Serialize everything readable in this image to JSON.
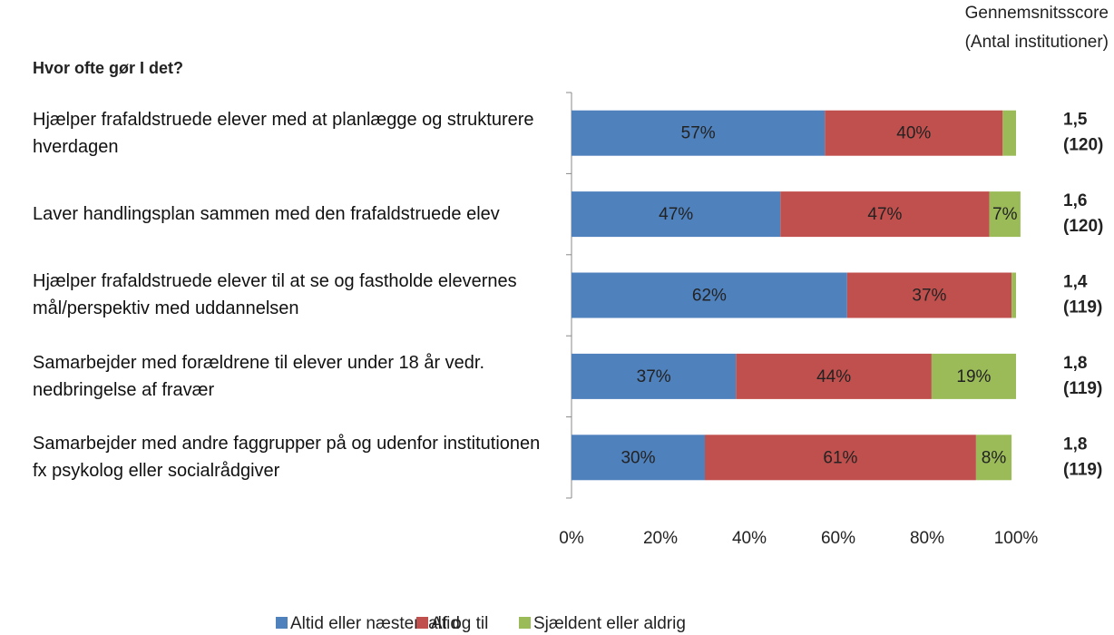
{
  "chart_data": {
    "type": "stacked-bar-horizontal",
    "title": "Hvor ofte gør I det?",
    "right_header": [
      "Gennemsnitsscore",
      "(Antal institutioner)"
    ],
    "categories": [
      "Hjælper frafaldstruede elever med at planlægge og strukturere hverdagen",
      "Laver handlingsplan sammen med den frafaldstruede elev",
      "Hjælper frafaldstruede elever til at se og fastholde elevernes mål/perspektiv med uddannelsen",
      "Samarbejder med forældrene til elever under 18 år vedr. nedbringelse af fravær",
      "Samarbejder med andre faggrupper på og udenfor institutionen fx psykolog eller socialrådgiver"
    ],
    "scores": [
      "1,5",
      "1,6",
      "1,4",
      "1,8",
      "1,8"
    ],
    "counts": [
      "(120)",
      "(120)",
      "(119)",
      "(119)",
      "(119)"
    ],
    "series": [
      {
        "name": "Altid eller næsten altid",
        "color": "#4f81bd",
        "values": [
          57,
          47,
          62,
          37,
          30
        ],
        "value_labels": [
          "57%",
          "47%",
          "62%",
          "37%",
          "30%"
        ]
      },
      {
        "name": "Af og til",
        "color": "#c0504d",
        "values": [
          40,
          47,
          37,
          44,
          61
        ],
        "value_labels": [
          "40%",
          "47%",
          "37%",
          "44%",
          "61%"
        ]
      },
      {
        "name": "Sjældent eller aldrig",
        "color": "#9bbb59",
        "values": [
          3,
          7,
          1,
          19,
          8
        ],
        "value_labels": [
          null,
          "7%",
          null,
          "19%",
          "8%"
        ]
      }
    ],
    "xlim": [
      0,
      100
    ],
    "xticks": [
      {
        "value": 0,
        "label": "0%"
      },
      {
        "value": 20,
        "label": "20%"
      },
      {
        "value": 40,
        "label": "40%"
      },
      {
        "value": 60,
        "label": "60%"
      },
      {
        "value": 80,
        "label": "80%"
      },
      {
        "value": 100,
        "label": "100%"
      }
    ],
    "legend": "bottom"
  }
}
